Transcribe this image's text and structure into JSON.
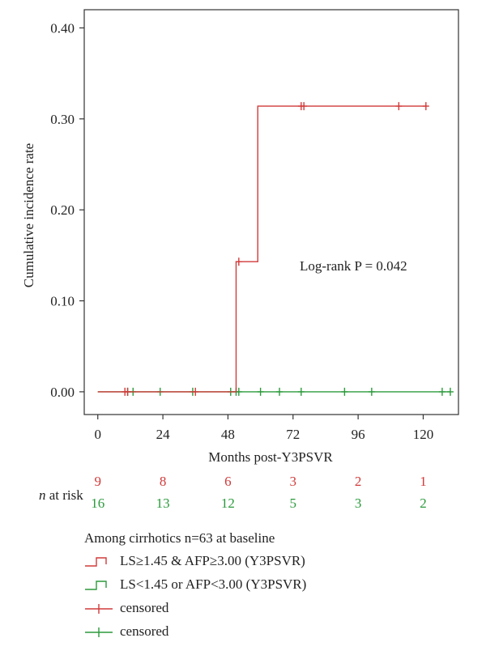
{
  "chart_data": {
    "type": "line",
    "step": true,
    "xlabel": "Months post-Y3PSVR",
    "ylabel": "Cumulative incidence rate",
    "xlim": [
      -5,
      133
    ],
    "ylim": [
      -0.025,
      0.42
    ],
    "x_ticks": [
      0,
      24,
      48,
      72,
      96,
      120
    ],
    "x_tick_labels": [
      "0",
      "24",
      "48",
      "72",
      "96",
      "120"
    ],
    "y_ticks": [
      0.0,
      0.1,
      0.2,
      0.3,
      0.4
    ],
    "y_tick_labels": [
      "0.00",
      "0.10",
      "0.20",
      "0.30",
      "0.40"
    ],
    "annotation": "Log-rank P = 0.042",
    "series": [
      {
        "name": "LS≥1.45 & AFP≥3.00 (Y3PSVR)",
        "color": "#d23a3a",
        "x": [
          0,
          51,
          59,
          121
        ],
        "y": [
          0.0,
          0.143,
          0.314,
          0.314
        ],
        "censored_x": [
          10,
          11,
          36,
          52,
          75,
          76,
          111,
          121
        ],
        "censored_y": [
          0.0,
          0.0,
          0.0,
          0.143,
          0.314,
          0.314,
          0.314,
          0.314
        ]
      },
      {
        "name": "LS<1.45 or AFP<3.00 (Y3PSVR)",
        "color": "#2c9a3c",
        "x": [
          0,
          130
        ],
        "y": [
          0.0,
          0.0
        ],
        "censored_x": [
          11,
          13,
          23,
          35,
          49,
          51,
          52,
          60,
          67,
          75,
          91,
          101,
          127,
          130
        ],
        "censored_y": [
          0,
          0,
          0,
          0,
          0,
          0,
          0,
          0,
          0,
          0,
          0,
          0,
          0,
          0
        ]
      }
    ],
    "risk_table": {
      "label_prefix": "n",
      "label_suffix": " at risk",
      "times": [
        0,
        24,
        48,
        72,
        96,
        120
      ],
      "rows": [
        {
          "color": "#d23a3a",
          "values": [
            "9",
            "8",
            "6",
            "3",
            "2",
            "1"
          ]
        },
        {
          "color": "#2c9a3c",
          "values": [
            "16",
            "13",
            "12",
            "5",
            "3",
            "2"
          ]
        }
      ]
    },
    "legend": {
      "title": "Among cirrhotics n=63 at baseline",
      "placement": "bottom",
      "items": [
        {
          "label": "LS≥1.45 & AFP≥3.00 (Y3PSVR)",
          "color": "#d23a3a",
          "symbol": "step"
        },
        {
          "label": "LS<1.45 or AFP<3.00 (Y3PSVR)",
          "color": "#2c9a3c",
          "symbol": "step"
        },
        {
          "label": "censored",
          "color": "#d23a3a",
          "symbol": "plus"
        },
        {
          "label": "censored",
          "color": "#2c9a3c",
          "symbol": "plus"
        }
      ]
    }
  }
}
